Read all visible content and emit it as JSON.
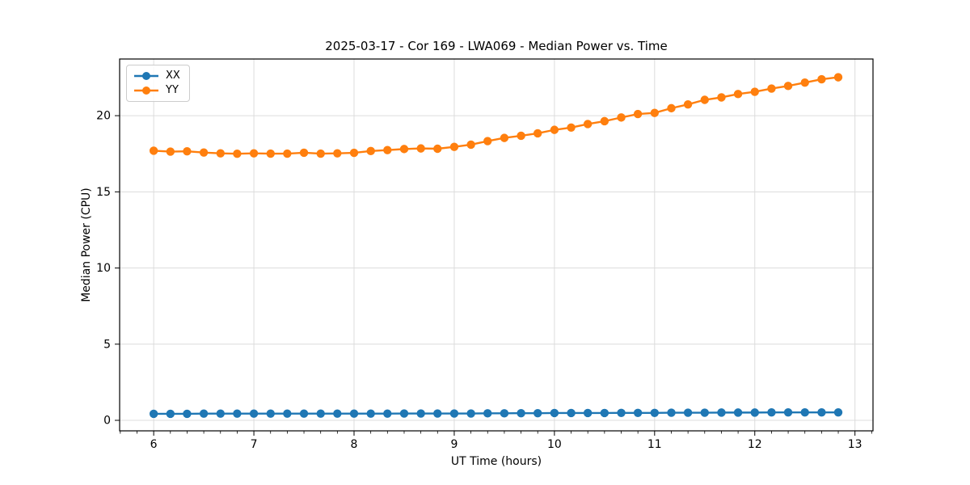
{
  "figure": {
    "background": "#ffffff",
    "frame_color": "#000000",
    "text_color": "#000000"
  },
  "chart_data": {
    "type": "line",
    "title": "2025-03-17 - Cor 169 - LWA069 - Median Power vs. Time",
    "xlabel": "UT Time (hours)",
    "ylabel": "Median Power (CPU)",
    "xlim": [
      5.66,
      13.18
    ],
    "ylim": [
      -0.69,
      23.72
    ],
    "xticks": [
      6,
      7,
      8,
      9,
      10,
      11,
      12,
      13
    ],
    "yticks": [
      0,
      5,
      10,
      15,
      20
    ],
    "x_minor_step": 0.1666667,
    "grid": true,
    "grid_color": "#dcdcdc",
    "legend": {
      "position": "upper-left",
      "entries": [
        "XX",
        "YY"
      ]
    },
    "x": [
      6.0,
      6.167,
      6.333,
      6.5,
      6.667,
      6.833,
      7.0,
      7.167,
      7.333,
      7.5,
      7.667,
      7.833,
      8.0,
      8.167,
      8.333,
      8.5,
      8.667,
      8.833,
      9.0,
      9.167,
      9.333,
      9.5,
      9.667,
      9.833,
      10.0,
      10.167,
      10.333,
      10.5,
      10.667,
      10.833,
      11.0,
      11.167,
      11.333,
      11.5,
      11.667,
      11.833,
      12.0,
      12.167,
      12.333,
      12.5,
      12.667,
      12.833
    ],
    "series": [
      {
        "name": "XX",
        "color": "#1f77b4",
        "values": [
          0.43,
          0.43,
          0.43,
          0.44,
          0.44,
          0.44,
          0.44,
          0.44,
          0.44,
          0.44,
          0.44,
          0.44,
          0.44,
          0.44,
          0.44,
          0.45,
          0.45,
          0.45,
          0.45,
          0.45,
          0.46,
          0.46,
          0.47,
          0.47,
          0.48,
          0.48,
          0.48,
          0.48,
          0.49,
          0.49,
          0.49,
          0.5,
          0.5,
          0.5,
          0.51,
          0.51,
          0.51,
          0.52,
          0.52,
          0.52,
          0.52,
          0.52
        ]
      },
      {
        "name": "YY",
        "color": "#ff7f0e",
        "values": [
          17.7,
          17.64,
          17.66,
          17.58,
          17.53,
          17.5,
          17.53,
          17.51,
          17.51,
          17.57,
          17.51,
          17.53,
          17.56,
          17.68,
          17.74,
          17.81,
          17.85,
          17.83,
          17.95,
          18.1,
          18.33,
          18.54,
          18.68,
          18.84,
          19.07,
          19.22,
          19.45,
          19.64,
          19.88,
          20.11,
          20.18,
          20.49,
          20.74,
          21.04,
          21.2,
          21.42,
          21.57,
          21.78,
          21.95,
          22.17,
          22.39,
          22.52
        ]
      }
    ]
  }
}
